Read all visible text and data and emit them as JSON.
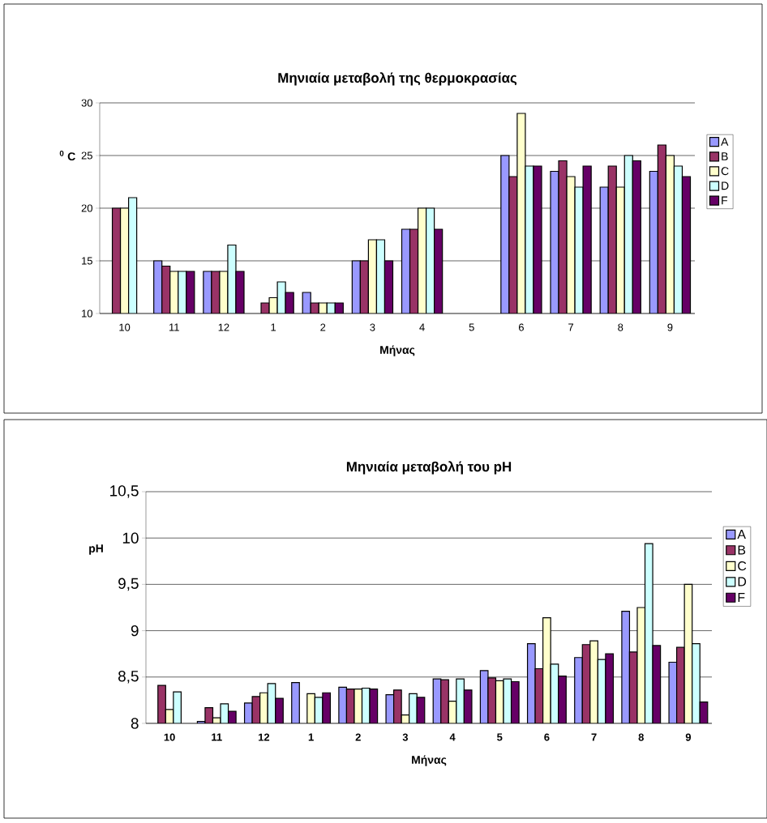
{
  "chart_data": [
    {
      "type": "bar",
      "title": "Μηνιαία μεταβολή της θερμοκρασίας",
      "xlabel": "Μήνας",
      "ylabel": "$^{0}$ C",
      "categories": [
        "10",
        "11",
        "12",
        "1",
        "2",
        "3",
        "4",
        "5",
        "6",
        "7",
        "8",
        "9"
      ],
      "series": [
        {
          "name": "A",
          "color": "#9999ff",
          "values": [
            null,
            15,
            14,
            null,
            12,
            15,
            18,
            null,
            25,
            23.5,
            22,
            23.5
          ]
        },
        {
          "name": "B",
          "color": "#993366",
          "values": [
            20,
            14.5,
            14,
            11,
            11,
            15,
            18,
            null,
            23,
            24.5,
            24,
            26
          ]
        },
        {
          "name": "C",
          "color": "#ffffcc",
          "values": [
            20,
            14,
            14,
            11.5,
            11,
            17,
            20,
            null,
            29,
            23,
            22,
            25
          ]
        },
        {
          "name": "D",
          "color": "#ccffff",
          "values": [
            21,
            14,
            16.5,
            13,
            11,
            17,
            20,
            null,
            24,
            22,
            25,
            24
          ]
        },
        {
          "name": "F",
          "color": "#660066",
          "values": [
            null,
            14,
            14,
            12,
            11,
            15,
            18,
            null,
            24,
            24,
            24.5,
            23
          ]
        }
      ],
      "ylim": [
        10,
        30
      ],
      "yticks": [
        10,
        15,
        20,
        25,
        30
      ],
      "grid": "y",
      "legend": "right"
    },
    {
      "type": "bar",
      "title": "Μηνιαία μεταβολή του pH",
      "xlabel": "Μήνας",
      "ylabel": "pH",
      "categories": [
        "10",
        "11",
        "12",
        "1",
        "2",
        "3",
        "4",
        "5",
        "6",
        "7",
        "8",
        "9"
      ],
      "series": [
        {
          "name": "A",
          "color": "#9999ff",
          "values": [
            null,
            8.02,
            8.22,
            8.44,
            8.39,
            8.31,
            8.48,
            8.57,
            8.86,
            8.71,
            9.21,
            8.66
          ]
        },
        {
          "name": "B",
          "color": "#993366",
          "values": [
            8.41,
            8.17,
            8.29,
            null,
            8.37,
            8.36,
            8.47,
            8.49,
            8.59,
            8.85,
            8.77,
            8.82
          ]
        },
        {
          "name": "C",
          "color": "#ffffcc",
          "values": [
            8.15,
            8.06,
            8.33,
            8.32,
            8.37,
            8.09,
            8.24,
            8.46,
            9.14,
            8.89,
            9.25,
            9.5
          ]
        },
        {
          "name": "D",
          "color": "#ccffff",
          "values": [
            8.34,
            8.21,
            8.43,
            8.28,
            8.38,
            8.32,
            8.48,
            8.48,
            8.64,
            8.69,
            9.94,
            8.86
          ]
        },
        {
          "name": "F",
          "color": "#660066",
          "values": [
            null,
            8.13,
            8.27,
            8.33,
            8.37,
            8.28,
            8.36,
            8.45,
            8.51,
            8.75,
            8.84,
            8.23
          ]
        }
      ],
      "ylim": [
        8,
        10.5
      ],
      "yticks": [
        {
          "value": 8,
          "label": "8"
        },
        {
          "value": 8.5,
          "label": "8,5"
        },
        {
          "value": 9,
          "label": "9"
        },
        {
          "value": 9.5,
          "label": "9,5"
        },
        {
          "value": 10,
          "label": "10"
        },
        {
          "value": 10.5,
          "label": "10,5"
        }
      ],
      "grid": "y",
      "legend": "right"
    }
  ]
}
